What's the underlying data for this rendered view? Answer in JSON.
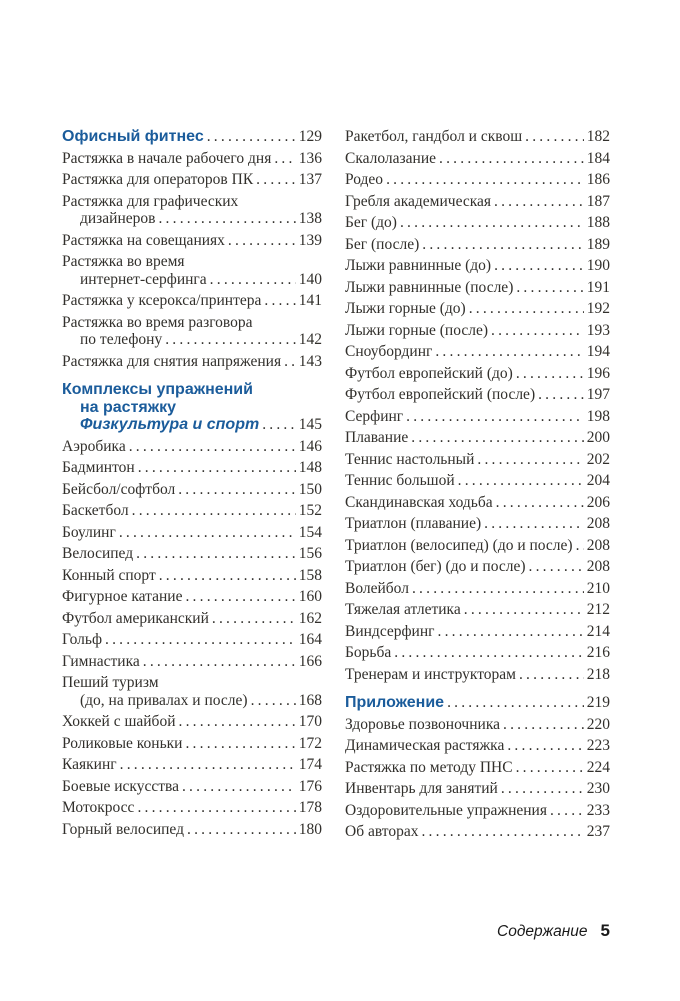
{
  "footer": {
    "label": "Содержание",
    "page_number": "5"
  },
  "colors": {
    "heading_blue": "#1b5c9b",
    "body_text": "#32302c"
  },
  "toc": {
    "columns": [
      {
        "name": "left",
        "entries": [
          {
            "style": "heading",
            "lines": [
              "Офисный фитнес"
            ],
            "page": "129"
          },
          {
            "style": "entry",
            "lines": [
              "Растяжка в начале рабочего дня"
            ],
            "page": "136"
          },
          {
            "style": "entry",
            "lines": [
              "Растяжка для операторов ПК"
            ],
            "page": "137"
          },
          {
            "style": "entry",
            "lines": [
              "Растяжка для графических",
              "дизайнеров"
            ],
            "page": "138"
          },
          {
            "style": "entry",
            "lines": [
              "Растяжка на совещаниях"
            ],
            "page": "139"
          },
          {
            "style": "entry",
            "lines": [
              "Растяжка во время",
              "интернет-серфинга"
            ],
            "page": "140"
          },
          {
            "style": "entry",
            "lines": [
              "Растяжка у ксерокса/принтера"
            ],
            "page": "141"
          },
          {
            "style": "entry",
            "lines": [
              "Растяжка во время разговора",
              "по телефону"
            ],
            "page": "142"
          },
          {
            "style": "entry",
            "lines": [
              "Растяжка для снятия напряжения"
            ],
            "page": "143"
          },
          {
            "style": "heading",
            "gap_before": true,
            "lines": [
              "Комплексы упражнений",
              "на растяжку"
            ],
            "italic_line": "Физкультура и спорт",
            "page": "145"
          },
          {
            "style": "entry",
            "lines": [
              "Аэробика"
            ],
            "page": "146"
          },
          {
            "style": "entry",
            "lines": [
              "Бадминтон"
            ],
            "page": "148"
          },
          {
            "style": "entry",
            "lines": [
              "Бейсбол/софтбол"
            ],
            "page": "150"
          },
          {
            "style": "entry",
            "lines": [
              "Баскетбол"
            ],
            "page": "152"
          },
          {
            "style": "entry",
            "lines": [
              "Боулинг"
            ],
            "page": "154"
          },
          {
            "style": "entry",
            "lines": [
              "Велосипед"
            ],
            "page": "156"
          },
          {
            "style": "entry",
            "lines": [
              "Конный спорт"
            ],
            "page": "158"
          },
          {
            "style": "entry",
            "lines": [
              "Фигурное катание"
            ],
            "page": "160"
          },
          {
            "style": "entry",
            "lines": [
              "Футбол американский"
            ],
            "page": "162"
          },
          {
            "style": "entry",
            "lines": [
              "Гольф"
            ],
            "page": "164"
          },
          {
            "style": "entry",
            "lines": [
              "Гимнастика"
            ],
            "page": "166"
          },
          {
            "style": "entry",
            "lines": [
              "Пеший туризм",
              "(до, на привалах и после)"
            ],
            "page": "168"
          },
          {
            "style": "entry",
            "lines": [
              "Хоккей с шайбой"
            ],
            "page": "170"
          },
          {
            "style": "entry",
            "lines": [
              "Роликовые коньки"
            ],
            "page": "172"
          },
          {
            "style": "entry",
            "lines": [
              "Каякинг"
            ],
            "page": "174"
          },
          {
            "style": "entry",
            "lines": [
              "Боевые искусства"
            ],
            "page": "176"
          },
          {
            "style": "entry",
            "lines": [
              "Мотокросс"
            ],
            "page": "178"
          },
          {
            "style": "entry",
            "lines": [
              "Горный велосипед"
            ],
            "page": "180"
          }
        ]
      },
      {
        "name": "right",
        "entries": [
          {
            "style": "entry",
            "lines": [
              "Ракетбол, гандбол и сквош"
            ],
            "page": "182"
          },
          {
            "style": "entry",
            "lines": [
              "Скалолазание"
            ],
            "page": "184"
          },
          {
            "style": "entry",
            "lines": [
              "Родео"
            ],
            "page": "186"
          },
          {
            "style": "entry",
            "lines": [
              "Гребля академическая"
            ],
            "page": "187"
          },
          {
            "style": "entry",
            "lines": [
              "Бег (до)"
            ],
            "page": "188"
          },
          {
            "style": "entry",
            "lines": [
              "Бег (после)"
            ],
            "page": "189"
          },
          {
            "style": "entry",
            "lines": [
              "Лыжи равнинные (до)"
            ],
            "page": "190"
          },
          {
            "style": "entry",
            "lines": [
              "Лыжи равнинные (после)"
            ],
            "page": "191"
          },
          {
            "style": "entry",
            "lines": [
              "Лыжи горные (до)"
            ],
            "page": "192"
          },
          {
            "style": "entry",
            "lines": [
              "Лыжи горные (после)"
            ],
            "page": "193"
          },
          {
            "style": "entry",
            "lines": [
              "Сноубординг"
            ],
            "page": "194"
          },
          {
            "style": "entry",
            "lines": [
              "Футбол европейский (до)"
            ],
            "page": "196"
          },
          {
            "style": "entry",
            "lines": [
              "Футбол европейский (после)"
            ],
            "page": "197"
          },
          {
            "style": "entry",
            "lines": [
              "Серфинг"
            ],
            "page": "198"
          },
          {
            "style": "entry",
            "lines": [
              "Плавание"
            ],
            "page": "200"
          },
          {
            "style": "entry",
            "lines": [
              "Теннис настольный"
            ],
            "page": "202"
          },
          {
            "style": "entry",
            "lines": [
              "Теннис большой"
            ],
            "page": "204"
          },
          {
            "style": "entry",
            "lines": [
              "Скандинавская ходьба"
            ],
            "page": "206"
          },
          {
            "style": "entry",
            "lines": [
              "Триатлон (плавание)"
            ],
            "page": "208"
          },
          {
            "style": "entry",
            "lines": [
              "Триатлон (велосипед) (до и после)"
            ],
            "page": "208"
          },
          {
            "style": "entry",
            "lines": [
              "Триатлон (бег) (до и после)"
            ],
            "page": "208"
          },
          {
            "style": "entry",
            "lines": [
              "Волейбол"
            ],
            "page": "210"
          },
          {
            "style": "entry",
            "lines": [
              "Тяжелая атлетика"
            ],
            "page": "212"
          },
          {
            "style": "entry",
            "lines": [
              "Виндсерфинг"
            ],
            "page": "214"
          },
          {
            "style": "entry",
            "lines": [
              "Борьба"
            ],
            "page": "216"
          },
          {
            "style": "entry",
            "lines": [
              "Тренерам и инструкторам"
            ],
            "page": "218"
          },
          {
            "style": "heading",
            "gap_before": true,
            "lines": [
              "Приложение"
            ],
            "page": "219"
          },
          {
            "style": "entry",
            "lines": [
              "Здоровье позвоночника"
            ],
            "page": "220"
          },
          {
            "style": "entry",
            "lines": [
              "Динамическая растяжка"
            ],
            "page": "223"
          },
          {
            "style": "entry",
            "lines": [
              "Растяжка по методу ПНС"
            ],
            "page": "224"
          },
          {
            "style": "entry",
            "lines": [
              "Инвентарь для занятий"
            ],
            "page": "230"
          },
          {
            "style": "entry",
            "lines": [
              "Оздоровительные упражнения"
            ],
            "page": "233"
          },
          {
            "style": "entry",
            "lines": [
              "Об авторах"
            ],
            "page": "237"
          }
        ]
      }
    ]
  }
}
